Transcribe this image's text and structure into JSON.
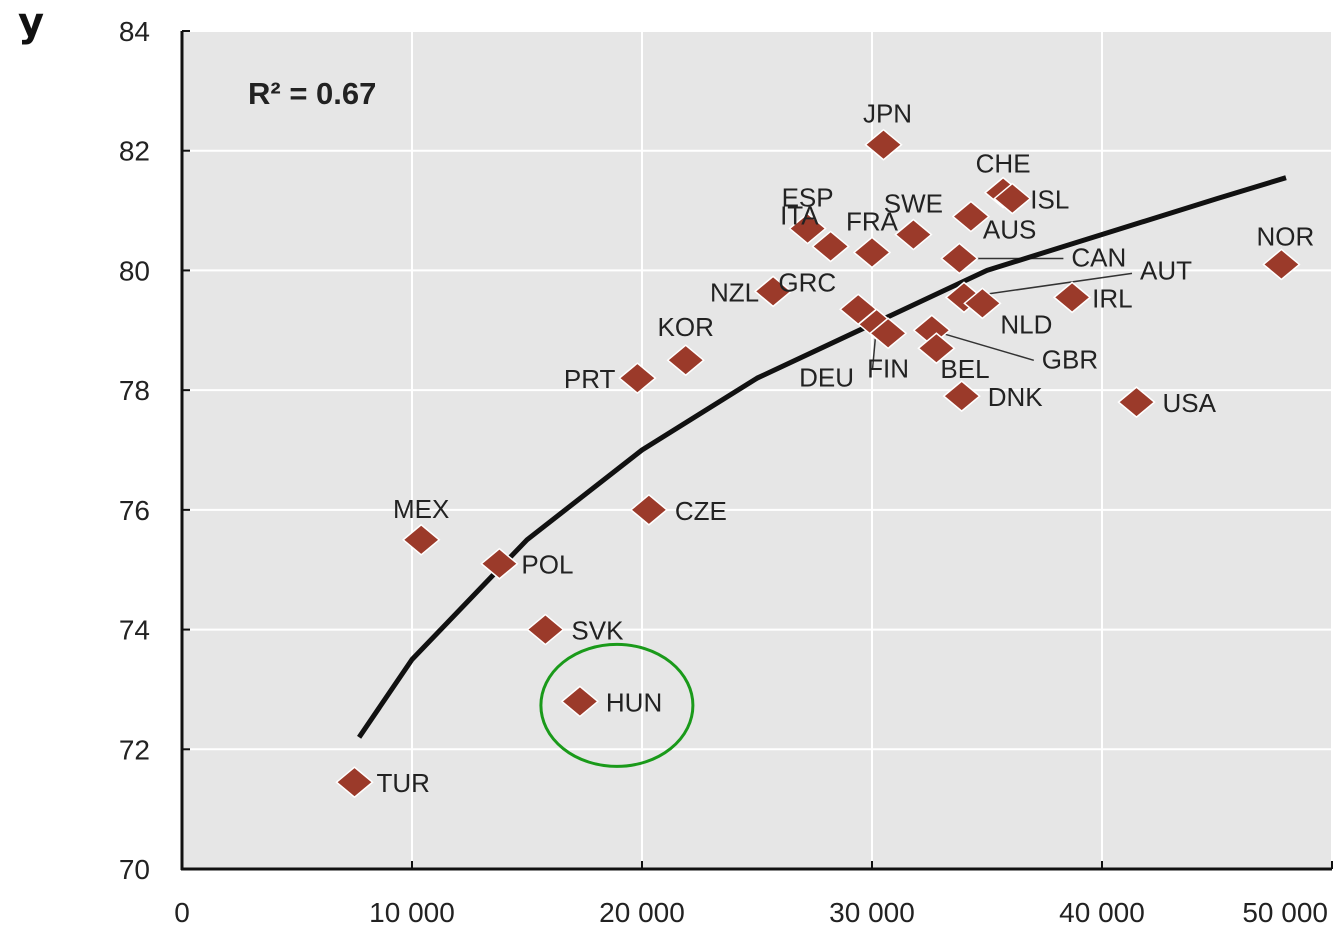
{
  "chart_data": {
    "type": "scatter",
    "title": "",
    "ylabel": "y",
    "xlabel": "",
    "xlim": [
      0,
      50000
    ],
    "ylim": [
      70,
      84
    ],
    "x_ticks": [
      0,
      10000,
      20000,
      30000,
      40000,
      50000
    ],
    "x_tick_labels": [
      "0",
      "10 000",
      "20 000",
      "30 000",
      "40 000",
      "50 000"
    ],
    "y_ticks": [
      70,
      72,
      74,
      76,
      78,
      80,
      82,
      84
    ],
    "y_tick_labels": [
      "70",
      "72",
      "74",
      "76",
      "78",
      "80",
      "82",
      "84"
    ],
    "grid": true,
    "annotation": "R² = 0.67",
    "highlight": "HUN",
    "colors": {
      "marker": "#9b3a2a",
      "curve": "#111111",
      "highlight": "#1a9a1a",
      "plot_bg": "#e6e6e6"
    },
    "trendline": {
      "type": "logarithmic",
      "x": [
        7700,
        10000,
        15000,
        20000,
        25000,
        30000,
        35000,
        40000,
        45000,
        48000
      ],
      "y": [
        72.2,
        73.5,
        75.5,
        77.0,
        78.2,
        79.1,
        80.0,
        80.6,
        81.2,
        81.55
      ]
    },
    "points": [
      {
        "label": "TUR",
        "x": 7500,
        "y": 71.45
      },
      {
        "label": "MEX",
        "x": 10400,
        "y": 75.5
      },
      {
        "label": "POL",
        "x": 13800,
        "y": 75.1
      },
      {
        "label": "SVK",
        "x": 15800,
        "y": 74.0
      },
      {
        "label": "HUN",
        "x": 17300,
        "y": 72.8
      },
      {
        "label": "CZE",
        "x": 20300,
        "y": 76.0
      },
      {
        "label": "PRT",
        "x": 19800,
        "y": 78.2
      },
      {
        "label": "KOR",
        "x": 21900,
        "y": 78.5
      },
      {
        "label": "NZL",
        "x": 25700,
        "y": 79.65
      },
      {
        "label": "ESP",
        "x": 27200,
        "y": 80.7
      },
      {
        "label": "ITA",
        "x": 28200,
        "y": 80.4
      },
      {
        "label": "GRC",
        "x": 29400,
        "y": 79.35
      },
      {
        "label": "DEU",
        "x": 30200,
        "y": 79.1
      },
      {
        "label": "FIN",
        "x": 30700,
        "y": 78.95
      },
      {
        "label": "FRA",
        "x": 30000,
        "y": 80.3
      },
      {
        "label": "JPN",
        "x": 30500,
        "y": 82.1
      },
      {
        "label": "SWE",
        "x": 31800,
        "y": 80.6
      },
      {
        "label": "GBR",
        "x": 32600,
        "y": 79.0
      },
      {
        "label": "BEL",
        "x": 32800,
        "y": 78.7
      },
      {
        "label": "CAN",
        "x": 33800,
        "y": 80.2
      },
      {
        "label": "DNK",
        "x": 33900,
        "y": 77.9
      },
      {
        "label": "AUT",
        "x": 34000,
        "y": 79.55
      },
      {
        "label": "AUS",
        "x": 34300,
        "y": 80.9
      },
      {
        "label": "NLD",
        "x": 34800,
        "y": 79.45
      },
      {
        "label": "CHE",
        "x": 35700,
        "y": 81.3
      },
      {
        "label": "ISL",
        "x": 36100,
        "y": 81.2
      },
      {
        "label": "IRL",
        "x": 38700,
        "y": 79.55
      },
      {
        "label": "USA",
        "x": 41500,
        "y": 77.8
      },
      {
        "label": "NOR",
        "x": 47800,
        "y": 80.1
      }
    ]
  }
}
